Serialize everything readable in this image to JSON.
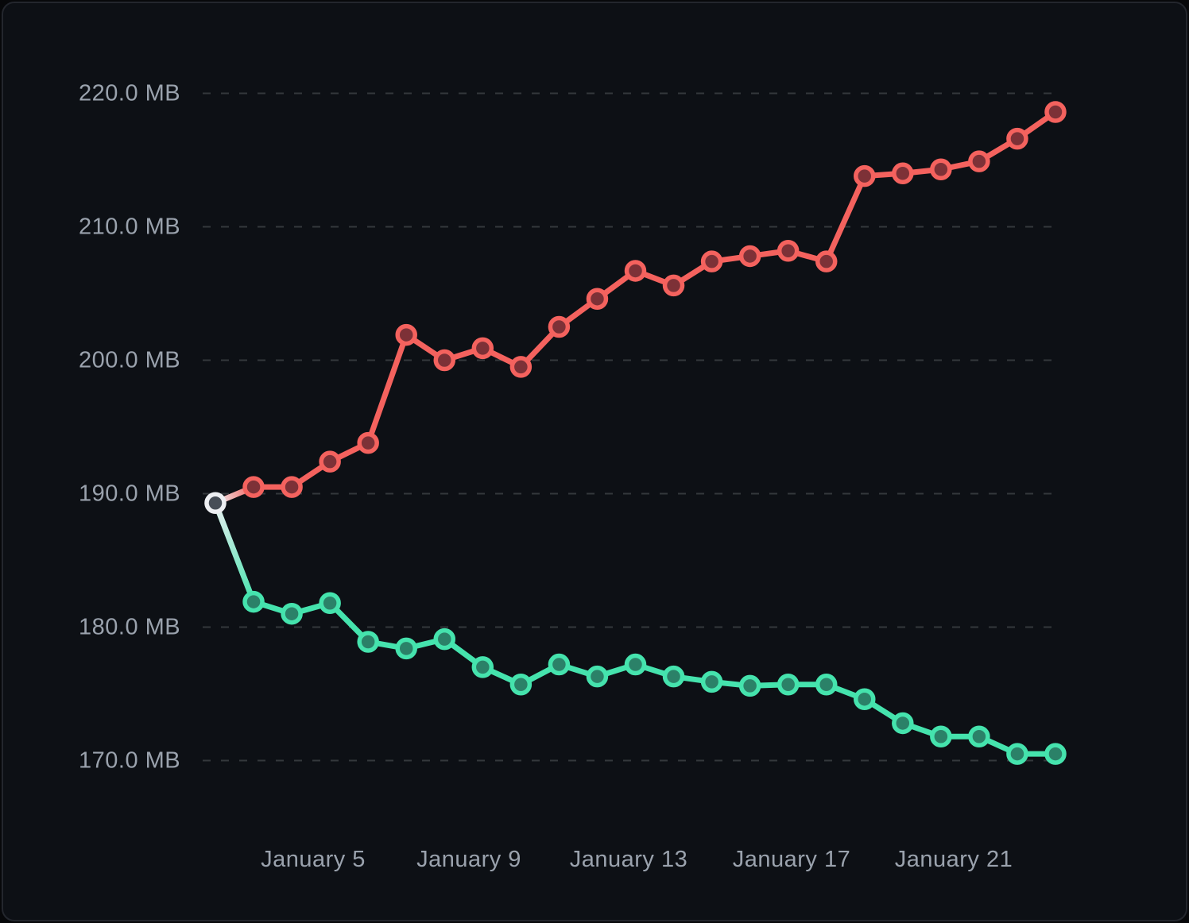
{
  "chart_data": {
    "type": "line",
    "title": "",
    "unit": "MB",
    "ylim": [
      164,
      224
    ],
    "grid": "horizontal-dashed",
    "legend_position": "none",
    "y_tick_labels": [
      "220.0 MB",
      "210.0 MB",
      "200.0 MB",
      "190.0 MB",
      "180.0 MB",
      "170.0 MB"
    ],
    "y_tick_values": [
      220,
      210,
      200,
      190,
      180,
      170
    ],
    "x_tick_labels": [
      "January 5",
      "January 9",
      "January 13",
      "January 17",
      "January 21"
    ],
    "x": [
      "January 2",
      "January 3",
      "January 4",
      "January 5",
      "January 6",
      "January 7",
      "January 8",
      "January 9",
      "January 10",
      "January 11",
      "January 12",
      "January 13",
      "January 14",
      "January 15",
      "January 16",
      "January 17",
      "January 18",
      "January 19",
      "January 20",
      "January 21",
      "January 22",
      "January 23",
      "January 24"
    ],
    "series": [
      {
        "name": "series-green-decreasing",
        "color": "#45e3ad",
        "point_fill": "#2b8168",
        "values": [
          189.3,
          181.9,
          181.0,
          181.8,
          178.9,
          178.4,
          179.1,
          177.0,
          175.7,
          177.2,
          176.3,
          177.2,
          176.3,
          175.9,
          175.6,
          175.7,
          175.7,
          174.6,
          172.8,
          171.8,
          171.8,
          170.5,
          170.5
        ]
      },
      {
        "name": "series-red-increasing",
        "color": "#f4625e",
        "point_fill": "#7d3137",
        "values": [
          189.3,
          190.5,
          190.5,
          192.4,
          193.8,
          201.9,
          200.0,
          200.9,
          199.5,
          202.5,
          204.6,
          206.7,
          205.6,
          207.4,
          207.8,
          208.2,
          207.4,
          213.8,
          214.0,
          214.3,
          214.9,
          216.6,
          218.6
        ]
      }
    ],
    "start_point": {
      "x_label": "January 2",
      "value": 189.3,
      "ring_color": "#edeff2",
      "fill_color": "#474e57"
    },
    "colors": {
      "background": "#0d1015",
      "card_border": "#23262d",
      "grid": "#34383c",
      "axis_text": "#9aa2ad"
    }
  }
}
